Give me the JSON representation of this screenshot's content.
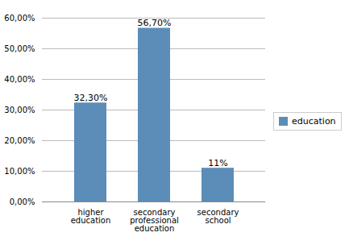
{
  "chart_data": {
    "type": "bar",
    "categories": [
      "higher\neducation",
      "secondary\nprofessional\neducation",
      "secondary\nschool"
    ],
    "series": [
      {
        "name": "education",
        "color": "#5b8db8",
        "values": [
          0.323,
          0.567,
          0.11
        ],
        "value_labels": [
          "32,30%",
          "56,70%",
          "11%"
        ]
      }
    ],
    "data_labels": true,
    "ylim": [
      0,
      0.6
    ],
    "yticks": [
      {
        "value": 0.0,
        "label": "0,00%"
      },
      {
        "value": 0.1,
        "label": "10,00%"
      },
      {
        "value": 0.2,
        "label": "20,00%"
      },
      {
        "value": 0.3,
        "label": "30,00%"
      },
      {
        "value": 0.4,
        "label": "40,00%"
      },
      {
        "value": 0.5,
        "label": "50,00%"
      },
      {
        "value": 0.6,
        "label": "60,00%"
      }
    ],
    "grid": true,
    "legend": "right"
  }
}
